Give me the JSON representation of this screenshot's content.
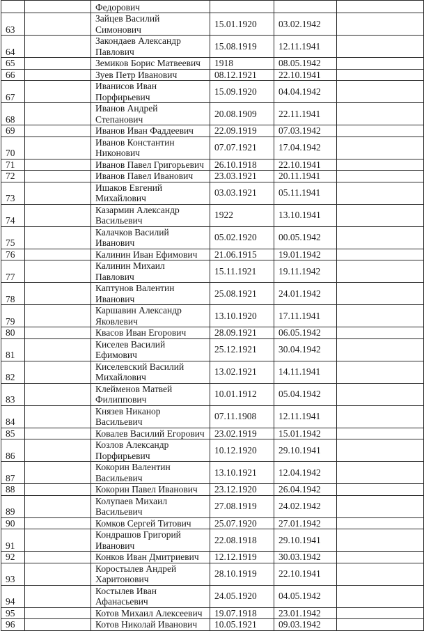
{
  "table": {
    "continued_row": {
      "name": "Федорович"
    },
    "rows": [
      {
        "num": "63",
        "name": [
          "Зайцев Василий",
          "Симонович"
        ],
        "birth": "15.01.1920",
        "death": "03.02.1942"
      },
      {
        "num": "64",
        "name": [
          "Закондаев Александр",
          "Павлович"
        ],
        "birth": "15.08.1919",
        "death": "12.11.1941"
      },
      {
        "num": "65",
        "name": [
          "Земиков Борис Матвеевич"
        ],
        "birth": "1918",
        "death": "08.05.1942"
      },
      {
        "num": "66",
        "name": [
          "Зуев Петр Иванович"
        ],
        "birth": "08.12.1921",
        "death": "22.10.1941"
      },
      {
        "num": "67",
        "name": [
          "Иванисов Иван",
          "Порфирьевич"
        ],
        "birth": "15.09.1920",
        "death": "04.04.1942"
      },
      {
        "num": "68",
        "name": [
          "Иванов Андрей",
          "Степанович"
        ],
        "birth": "20.08.1909",
        "death": "22.11.1941"
      },
      {
        "num": "69",
        "name": [
          "Иванов Иван Фаддеевич"
        ],
        "birth": "22.09.1919",
        "death": "07.03.1942"
      },
      {
        "num": "70",
        "name": [
          "Иванов Константин",
          "Никонович"
        ],
        "birth": "07.07.1921",
        "death": "17.04.1942"
      },
      {
        "num": "71",
        "name": [
          "Иванов Павел Григорьевич"
        ],
        "birth": "26.10.1918",
        "death": "22.10.1941"
      },
      {
        "num": "72",
        "name": [
          "Иванов Павел Иванович"
        ],
        "birth": "23.03.1921",
        "death": "20.11.1941"
      },
      {
        "num": "73",
        "name": [
          "Ишаков Евгений",
          "Михайлович"
        ],
        "birth": "03.03.1921",
        "death": "05.11.1941"
      },
      {
        "num": "74",
        "name": [
          "Казармин Александр",
          "Васильевич"
        ],
        "birth": "1922",
        "death": "13.10.1941"
      },
      {
        "num": "75",
        "name": [
          "Калачков Василий",
          "Иванович"
        ],
        "birth": "05.02.1920",
        "death": "00.05.1942"
      },
      {
        "num": "76",
        "name": [
          "Калинин Иван Ефимович"
        ],
        "birth": "21.06.1915",
        "death": "19.01.1942"
      },
      {
        "num": "77",
        "name": [
          "Калинин Михаил",
          "Павлович"
        ],
        "birth": "15.11.1921",
        "death": "19.11.1942"
      },
      {
        "num": "78",
        "name": [
          "Каптунов Валентин",
          "Иванович"
        ],
        "birth": "25.08.1921",
        "death": "24.01.1942"
      },
      {
        "num": "79",
        "name": [
          "Каршавин Александр",
          "Яковлевич"
        ],
        "birth": "13.10.1920",
        "death": "17.11.1941"
      },
      {
        "num": "80",
        "name": [
          "Квасов Иван Егорович"
        ],
        "birth": "28.09.1921",
        "death": "06.05.1942"
      },
      {
        "num": "81",
        "name": [
          "Киселев  Василий",
          "Ефимович"
        ],
        "birth": "25.12.1921",
        "death": "30.04.1942"
      },
      {
        "num": "82",
        "name": [
          "Киселевский Василий",
          "Михайлович"
        ],
        "birth": "13.02.1921",
        "death": "14.11.1941"
      },
      {
        "num": "83",
        "name": [
          "Клейменов  Матвей",
          "Филиппович"
        ],
        "birth": "10.01.1912",
        "death": "05.04.1942"
      },
      {
        "num": "84",
        "name": [
          "Князев Никанор",
          "Васильевич"
        ],
        "birth": "07.11.1908",
        "death": "12.11.1941"
      },
      {
        "num": "85",
        "name": [
          "Ковалев Василий Егорович"
        ],
        "birth": "23.02.1919",
        "death": "15.01.1942"
      },
      {
        "num": "86",
        "name": [
          "Козлов Александр",
          "Порфирьевич"
        ],
        "birth": "10.12.1920",
        "death": "29.10.1941"
      },
      {
        "num": "87",
        "name": [
          "Кокорин Валентин",
          "Васильевич"
        ],
        "birth": "13.10.1921",
        "death": "12.04.1942"
      },
      {
        "num": "88",
        "name": [
          "Кокорин Павел Иванович"
        ],
        "birth": "23.12.1920",
        "death": "26.04.1942"
      },
      {
        "num": "89",
        "name": [
          "Колупаев Михаил",
          "Васильевич"
        ],
        "birth": "27.08.1919",
        "death": "24.02.1942"
      },
      {
        "num": "90",
        "name": [
          "Комков Сергей Титович"
        ],
        "birth": "25.07.1920",
        "death": "27.01.1942"
      },
      {
        "num": "91",
        "name": [
          "Кондрашов Григорий",
          "Иванович"
        ],
        "birth": "22.08.1918",
        "death": "29.10.1941"
      },
      {
        "num": "92",
        "name": [
          "Конков Иван Дмитриевич"
        ],
        "birth": "12.12.1919",
        "death": "30.03.1942"
      },
      {
        "num": "93",
        "name": [
          "Коростылев Андрей",
          "Харитонович"
        ],
        "birth": "28.10.1919",
        "death": "22.10.1941"
      },
      {
        "num": "94",
        "name": [
          "Костылев Иван",
          "Афанасьевич"
        ],
        "birth": "24.05.1920",
        "death": "04.05.1942"
      },
      {
        "num": "95",
        "name": [
          "Котов Михаил Алексеевич"
        ],
        "birth": "19.07.1918",
        "death": "23.01.1942"
      },
      {
        "num": "96",
        "name": [
          "Котов Николай Иванович"
        ],
        "birth": "10.05.1921",
        "death": "09.03.1942"
      }
    ]
  }
}
